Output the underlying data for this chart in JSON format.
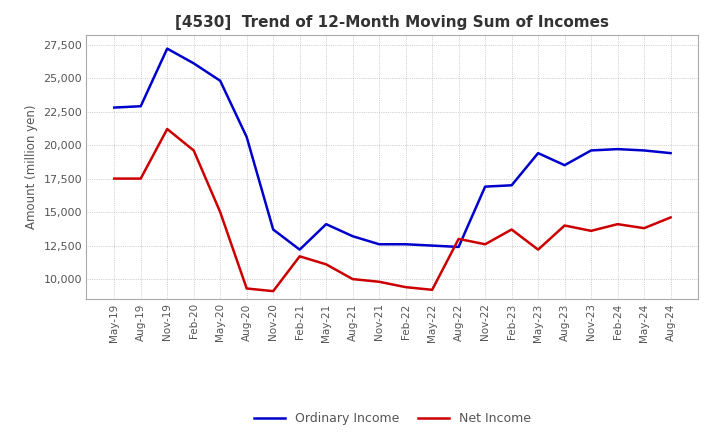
{
  "title": "[4530]  Trend of 12-Month Moving Sum of Incomes",
  "ylabel": "Amount (million yen)",
  "x_labels": [
    "May-19",
    "Aug-19",
    "Nov-19",
    "Feb-20",
    "May-20",
    "Aug-20",
    "Nov-20",
    "Feb-21",
    "May-21",
    "Aug-21",
    "Nov-21",
    "Feb-22",
    "May-22",
    "Aug-22",
    "Nov-22",
    "Feb-23",
    "May-23",
    "Aug-23",
    "Nov-23",
    "Feb-24",
    "May-24",
    "Aug-24"
  ],
  "ordinary_income": [
    22800,
    22900,
    27200,
    26100,
    24800,
    20600,
    13700,
    12200,
    14100,
    13200,
    12600,
    12600,
    12500,
    12400,
    16900,
    17000,
    19400,
    18500,
    19600,
    19700,
    19600,
    19400
  ],
  "net_income": [
    17500,
    17500,
    21200,
    19600,
    15000,
    9300,
    9100,
    11700,
    11100,
    10000,
    9800,
    9400,
    9200,
    13000,
    12600,
    13700,
    12200,
    14000,
    13600,
    14100,
    13800,
    14600
  ],
  "ordinary_color": "#0000CC",
  "net_color": "#CC0000",
  "ylim_min": 8500,
  "ylim_max": 28200,
  "yticks": [
    10000,
    12500,
    15000,
    17500,
    20000,
    22500,
    25000,
    27500
  ],
  "plot_bg": "#FFFFFF",
  "fig_bg": "#FFFFFF",
  "grid_color": "#AAAAAA",
  "title_color": "#333333",
  "label_color": "#555555",
  "legend_labels": [
    "Ordinary Income",
    "Net Income"
  ]
}
